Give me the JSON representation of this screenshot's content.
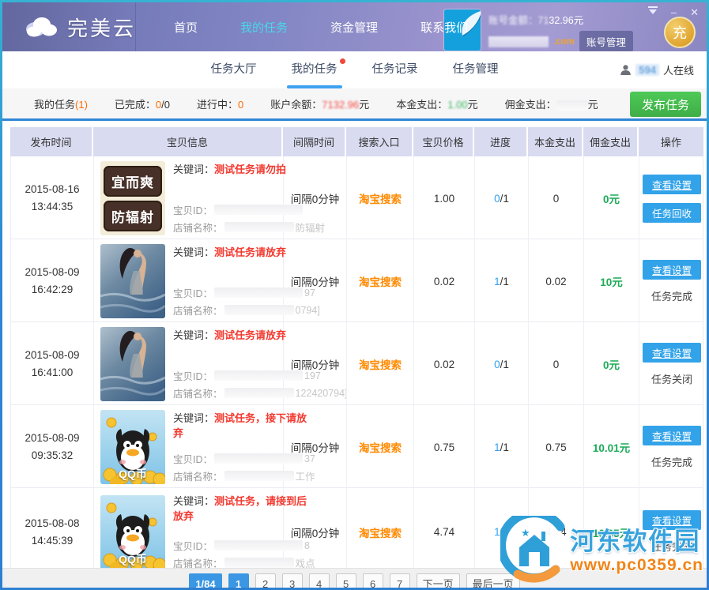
{
  "titlebar": {
    "app_name": "完美云",
    "nav": [
      {
        "label": "首页",
        "active": false
      },
      {
        "label": "我的任务",
        "active": true
      },
      {
        "label": "资金管理",
        "active": false
      },
      {
        "label": "联系我们",
        "active": false
      }
    ],
    "account": {
      "balance_label": "账号金额：",
      "balance_blurred_part": "71",
      "balance_visible_part": "32.96",
      "balance_unit": "元",
      "email_tail": ".com",
      "manage_label": "账号管理",
      "recharge_label": "充"
    },
    "icons": {
      "cloud_logo": "cloud-icon",
      "skin_menu": "skin-menu-icon",
      "minimize": "minimize-icon",
      "close": "close-icon"
    }
  },
  "tabbar": {
    "tabs": [
      {
        "label": "任务大厅",
        "active": false,
        "badge": false
      },
      {
        "label": "我的任务",
        "active": true,
        "badge": true
      },
      {
        "label": "任务记录",
        "active": false,
        "badge": false
      },
      {
        "label": "任务管理",
        "active": false,
        "badge": false
      }
    ],
    "online_count": "594",
    "online_suffix": "人在线"
  },
  "statsbar": {
    "my_tasks_label": "我的任务",
    "my_tasks_count": "(1)",
    "done_label": "已完成：",
    "done_value": "0",
    "done_total": "/0",
    "running_label": "进行中：",
    "running_value": "0",
    "balance_label": "账户余额：",
    "balance_value": "7132.96",
    "balance_unit": "元",
    "principal_label": "本金支出：",
    "principal_value": "1.00",
    "principal_unit": "元",
    "commission_label": "佣金支出：",
    "commission_unit": "元",
    "publish_label": "发布任务"
  },
  "table": {
    "headers": [
      "发布时间",
      "宝贝信息",
      "间隔时间",
      "搜索入口",
      "宝贝价格",
      "进度",
      "本金支出",
      "佣金支出",
      "操作"
    ],
    "labels": {
      "keyword": "关键词：",
      "item_id": "宝贝ID：",
      "shop": "店铺名称："
    },
    "rows": [
      {
        "date": "2015-08-16",
        "time": "13:44:35",
        "image": {
          "type": "sign",
          "lines": [
            "宜而爽",
            "防辐射"
          ],
          "label": ""
        },
        "keyword": "测试任务请勿拍",
        "id_tail": "",
        "shop_tail": "防辐射",
        "interval": "间隔0分钟",
        "entry": "淘宝搜索",
        "price": "1.00",
        "progress_done": "0",
        "progress_total": "/1",
        "principal": "0",
        "commission": "0元",
        "action_primary": "查看设置",
        "action_secondary": {
          "type": "button",
          "label": "任务回收"
        }
      },
      {
        "date": "2015-08-09",
        "time": "16:42:29",
        "image": {
          "type": "pool",
          "lines": [],
          "label": ""
        },
        "keyword": "测试任务请放弃",
        "id_tail": "97",
        "shop_tail": "0794]",
        "interval": "间隔0分钟",
        "entry": "淘宝搜索",
        "price": "0.02",
        "progress_done": "1",
        "progress_total": "/1",
        "principal": "0.02",
        "commission": "10元",
        "action_primary": "查看设置",
        "action_secondary": {
          "type": "text",
          "label": "任务完成"
        }
      },
      {
        "date": "2015-08-09",
        "time": "16:41:00",
        "image": {
          "type": "pool",
          "lines": [],
          "label": ""
        },
        "keyword": "测试任务请放弃",
        "id_tail": "197",
        "shop_tail": "122420794]",
        "interval": "间隔0分钟",
        "entry": "淘宝搜索",
        "price": "0.02",
        "progress_done": "0",
        "progress_total": "/1",
        "principal": "0",
        "commission": "0元",
        "action_primary": "查看设置",
        "action_secondary": {
          "type": "text",
          "label": "任务关闭"
        }
      },
      {
        "date": "2015-08-09",
        "time": "09:35:32",
        "image": {
          "type": "qq",
          "lines": [],
          "label": "QQ币"
        },
        "keyword": "测试任务，接下请放弃",
        "id_tail": "37",
        "shop_tail": "工作",
        "interval": "间隔0分钟",
        "entry": "淘宝搜索",
        "price": "0.75",
        "progress_done": "1",
        "progress_total": "/1",
        "principal": "0.75",
        "commission": "10.01元",
        "action_primary": "查看设置",
        "action_secondary": {
          "type": "text",
          "label": "任务完成"
        }
      },
      {
        "date": "2015-08-08",
        "time": "14:45:39",
        "image": {
          "type": "qq",
          "lines": [],
          "label": "QQ币"
        },
        "keyword": "测试任务，请接到后放弃",
        "id_tail": "8",
        "shop_tail": "戏点",
        "interval": "间隔0分钟",
        "entry": "淘宝搜索",
        "price": "4.74",
        "progress_done": "1",
        "progress_total": "/1",
        "principal": "4.74",
        "commission": "10.05元",
        "action_primary": "查看设置",
        "action_secondary": {
          "type": "text",
          "label": "任务完成"
        }
      }
    ]
  },
  "pagination": {
    "items": [
      {
        "label": "1/84",
        "active": true
      },
      {
        "label": "1",
        "active": true
      },
      {
        "label": "2",
        "active": false
      },
      {
        "label": "3",
        "active": false
      },
      {
        "label": "4",
        "active": false
      },
      {
        "label": "5",
        "active": false
      },
      {
        "label": "6",
        "active": false
      },
      {
        "label": "7",
        "active": false
      },
      {
        "label": "下一页",
        "active": false
      },
      {
        "label": "最后一页",
        "active": false
      }
    ]
  },
  "watermark": {
    "site_name": "河东软件园",
    "site_url": "www.pc0359.cn"
  },
  "colors": {
    "accent_blue": "#33a3e9",
    "publish_green": "#44b549",
    "entry_orange": "#ff8a00",
    "keyword_red": "#f3392f",
    "money_green": "#1cab57",
    "stat_orange": "#ff6a00",
    "header_lavender": "#d9dbf0",
    "titlebar_purple": "#8286c4",
    "active_nav_cyan": "#49d7e9"
  }
}
